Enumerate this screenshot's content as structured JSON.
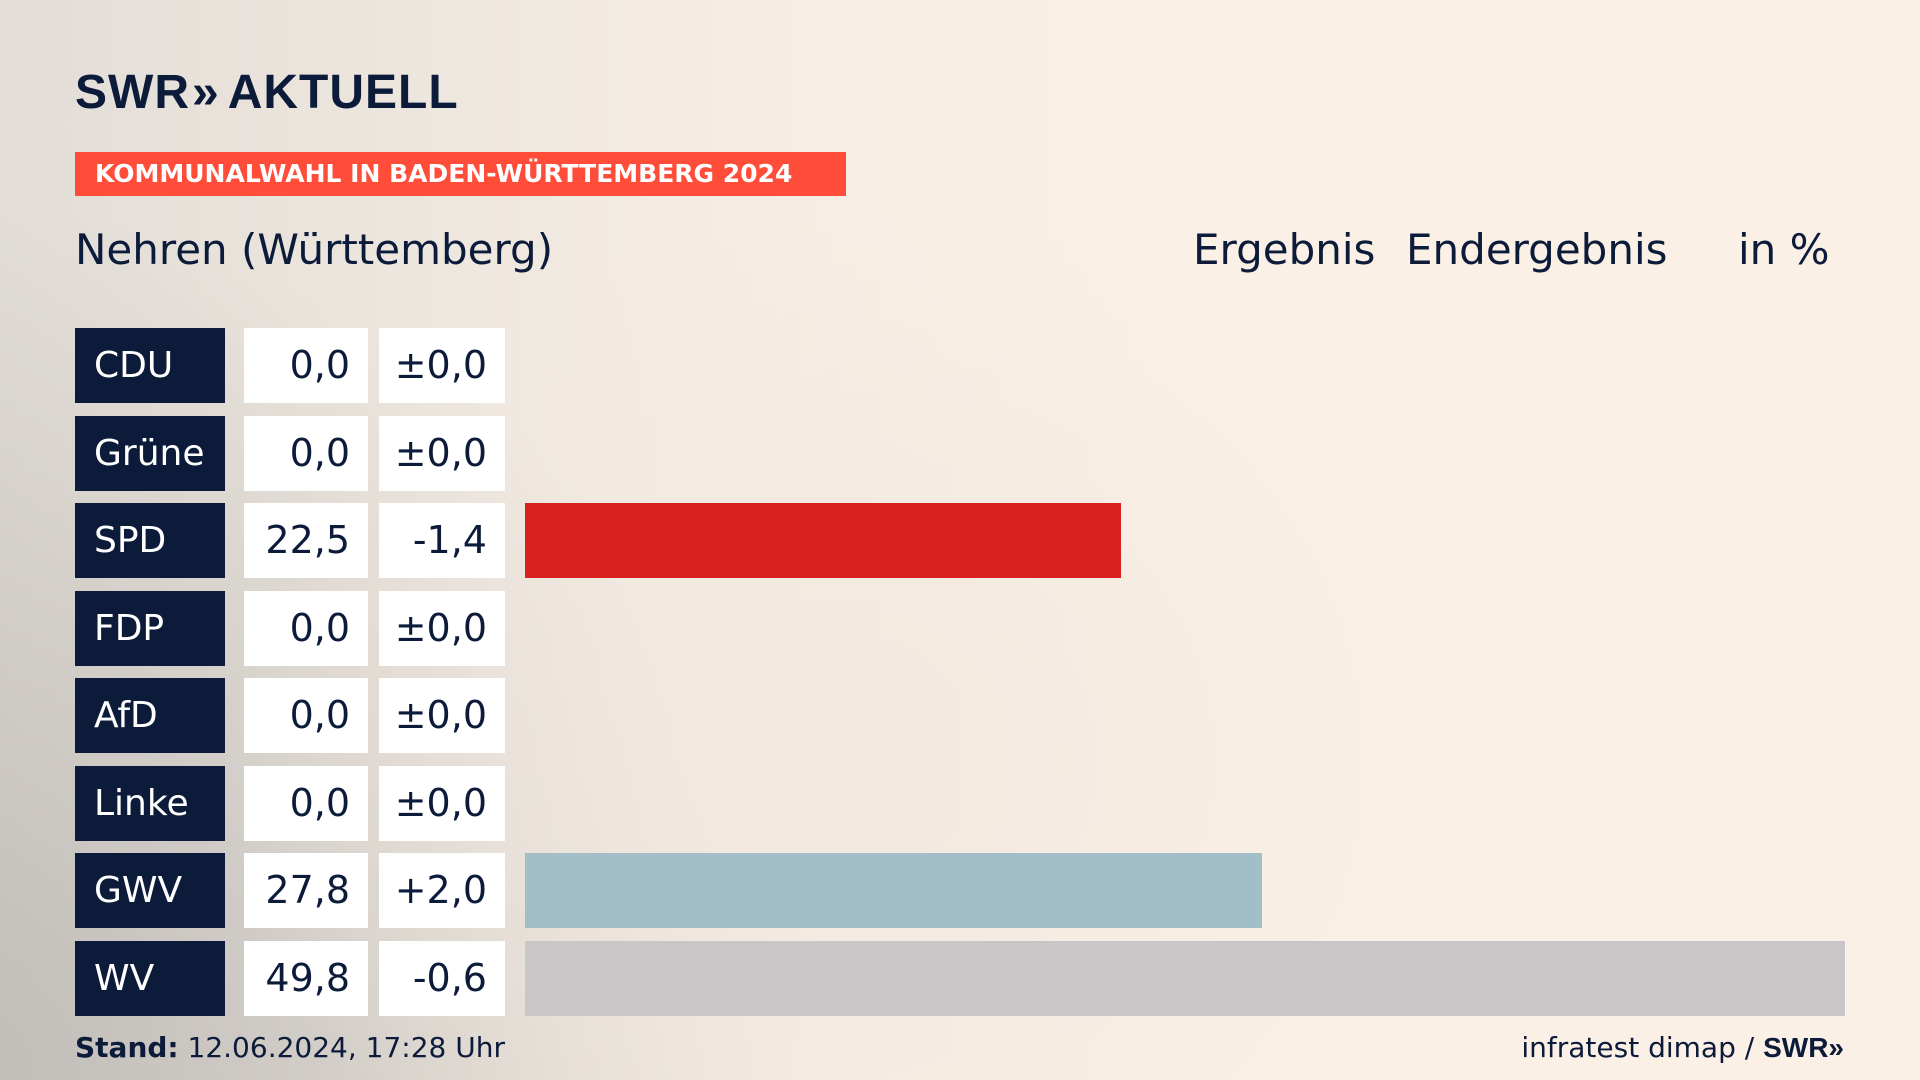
{
  "header": {
    "logo_text": "SWR",
    "logo_chevron": "»",
    "logo_product": "AKTUELL",
    "tag": "KOMMUNALWAHL IN BADEN-WÜRTTEMBERG 2024"
  },
  "subtitle": {
    "region": "Nehren (Württemberg)",
    "result_label": "Ergebnis",
    "status_label": "Endergebnis",
    "unit_label": "in %"
  },
  "chart_data": {
    "type": "bar",
    "orientation": "horizontal",
    "xlim": [
      0,
      49.8
    ],
    "categories": [
      "CDU",
      "Grüne",
      "SPD",
      "FDP",
      "AfD",
      "Linke",
      "GWV",
      "WV"
    ],
    "values": [
      0.0,
      0.0,
      22.5,
      0.0,
      0.0,
      0.0,
      27.8,
      49.8
    ],
    "value_labels": [
      "0,0",
      "0,0",
      "22,5",
      "0,0",
      "0,0",
      "0,0",
      "27,8",
      "49,8"
    ],
    "change_labels": [
      "±0,0",
      "±0,0",
      "-1,4",
      "±0,0",
      "±0,0",
      "±0,0",
      "+2,0",
      "-0,6"
    ],
    "changes": [
      0.0,
      0.0,
      -1.4,
      0.0,
      0.0,
      0.0,
      2.0,
      -0.6
    ],
    "colors": [
      "#0c1b3a",
      "#46962b",
      "#d8201f",
      "#ffd600",
      "#009ee0",
      "#be3075",
      "#a2bec8",
      "#c8c6c6"
    ]
  },
  "footer": {
    "stand_label": "Stand:",
    "stand_value": "12.06.2024, 17:28 Uhr",
    "source": "infratest dimap / ",
    "source_brand": "SWR»"
  }
}
